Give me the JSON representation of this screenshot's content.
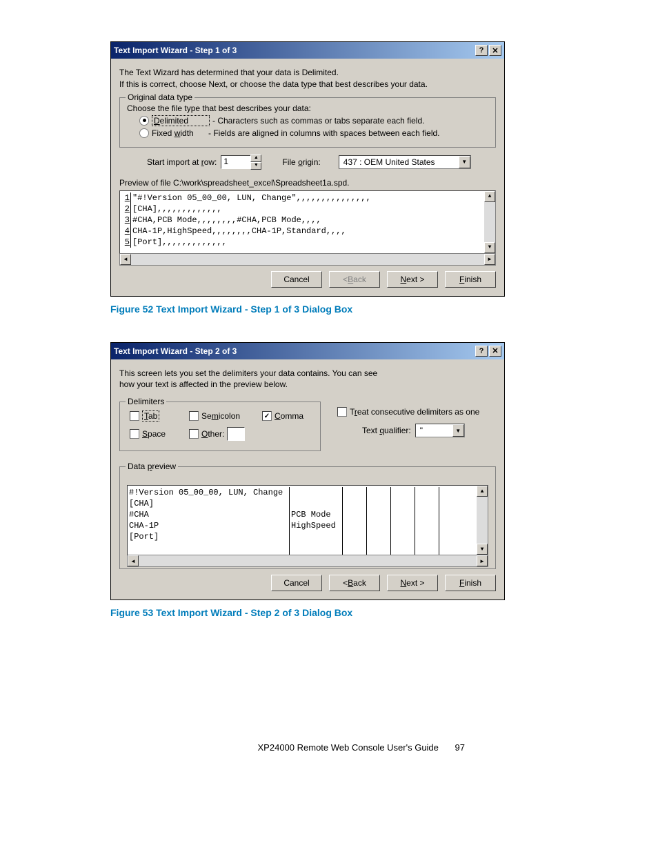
{
  "dialog1": {
    "title": "Text Import Wizard - Step 1 of 3",
    "intro_line1": "The Text Wizard has determined that your data is Delimited.",
    "intro_line2": "If this is correct, choose Next, or choose the data type that best describes your data.",
    "group_label": "Original data type",
    "choose_text": "Choose the file type that best describes your data:",
    "radio_delimited": "Delimited",
    "radio_delimited_desc": "- Characters such as commas or tabs separate each field.",
    "radio_fixed": "Fixed width",
    "radio_fixed_desc": "- Fields are aligned in columns with spaces between each field.",
    "start_row_label": "Start import at row:",
    "start_row_value": "1",
    "file_origin_label": "File origin:",
    "file_origin_value": "437 : OEM United States",
    "preview_label": "Preview of file C:\\work\\spreadsheet_excel\\Spreadsheet1a.spd.",
    "preview_lines": [
      "\"#!Version 05_00_00, LUN, Change\",,,,,,,,,,,,,,,",
      "[CHA],,,,,,,,,,,,,",
      "#CHA,PCB Mode,,,,,,,,#CHA,PCB Mode,,,,",
      "CHA-1P,HighSpeed,,,,,,,,CHA-1P,Standard,,,,",
      "[Port],,,,,,,,,,,,,"
    ],
    "btn_cancel": "Cancel",
    "btn_back": "< Back",
    "btn_next": "Next >",
    "btn_finish": "Finish"
  },
  "caption1": "Figure 52 Text Import Wizard - Step 1 of 3 Dialog Box",
  "dialog2": {
    "title": "Text Import Wizard - Step 2 of 3",
    "intro_line1": "This screen lets you set the delimiters your data contains.  You can see",
    "intro_line2": "how your text is affected in the preview below.",
    "delimiters_label": "Delimiters",
    "cb_tab": "Tab",
    "cb_semicolon": "Semicolon",
    "cb_comma": "Comma",
    "cb_space": "Space",
    "cb_other": "Other:",
    "cb_treat": "Treat consecutive delimiters as one",
    "text_qualifier_label": "Text qualifier:",
    "text_qualifier_value": "\"",
    "data_preview_label": "Data preview",
    "col1": [
      "#!Version 05_00_00, LUN, Change",
      "[CHA]",
      "#CHA",
      "CHA-1P",
      "[Port]"
    ],
    "col2": [
      "",
      "",
      "PCB Mode",
      "HighSpeed",
      ""
    ],
    "btn_cancel": "Cancel",
    "btn_back": "< Back",
    "btn_next": "Next >",
    "btn_finish": "Finish"
  },
  "caption2": "Figure 53 Text Import Wizard - Step 2 of 3 Dialog Box",
  "footer": {
    "doc_title": "XP24000 Remote Web Console User's Guide",
    "page_number": "97"
  }
}
